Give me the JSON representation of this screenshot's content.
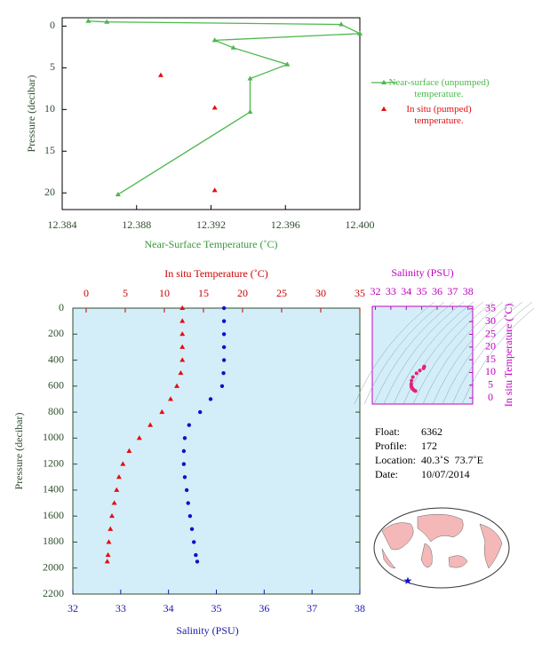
{
  "chart_data": [
    {
      "type": "line",
      "xlabel": "Near-Surface Temperature (˚C)",
      "ylabel": "Pressure (decibar)",
      "xlim": [
        12.384,
        12.4
      ],
      "xticks": [
        12.384,
        12.388,
        12.392,
        12.396,
        {
          "value": 12.4,
          "label": "12.400"
        }
      ],
      "ylim": [
        -1,
        22
      ],
      "yticks": [
        0,
        5,
        10,
        15,
        20
      ],
      "y_inverted": true,
      "legend": "right",
      "series": [
        {
          "name": "Near-surface (unpumped) temperature.",
          "color": "#4cb84c",
          "marker": "triangle",
          "line": true,
          "x": [
            12.3854,
            12.3864,
            12.399,
            12.4,
            12.3922,
            12.3932,
            12.3961,
            12.3941,
            12.3941,
            12.387
          ],
          "values": [
            -0.6,
            -0.5,
            -0.2,
            0.9,
            1.7,
            2.6,
            4.6,
            6.3,
            10.3,
            20.2
          ]
        },
        {
          "name": "In situ (pumped) temperature.",
          "color": "#e01010",
          "marker": "triangle",
          "line": false,
          "x": [
            12.3893,
            12.3922,
            12.3922
          ],
          "values": [
            5.9,
            9.8,
            19.7
          ]
        }
      ]
    },
    {
      "type": "profile",
      "ylabel": "Pressure (decibar)",
      "ylim": [
        0,
        2200
      ],
      "yticks": [
        0,
        200,
        400,
        600,
        800,
        1000,
        1200,
        1400,
        1600,
        1800,
        2000,
        2200
      ],
      "y_inverted": true,
      "xlabel": "Salinity (PSU)",
      "xlim": [
        32,
        38
      ],
      "xticks": [
        32,
        33,
        34,
        35,
        36,
        37,
        38
      ],
      "xcolor": "#1818a8",
      "x2label": "In situ Temperature (˚C)",
      "x2lim": [
        -1.7,
        35
      ],
      "x2ticks": [
        0,
        5,
        10,
        15,
        20,
        25,
        30,
        35
      ],
      "x2color": "#cc0000",
      "background": "#d4eef9",
      "y": [
        0,
        100,
        200,
        300,
        400,
        500,
        600,
        700,
        800,
        900,
        1000,
        1100,
        1200,
        1300,
        1400,
        1500,
        1600,
        1700,
        1800,
        1900,
        1950
      ],
      "series": [
        {
          "axis": "x2",
          "color": "#e01010",
          "marker": "triangle",
          "values": [
            12.3,
            12.3,
            12.3,
            12.3,
            12.3,
            12.1,
            11.6,
            10.8,
            9.7,
            8.2,
            6.8,
            5.5,
            4.7,
            4.2,
            3.9,
            3.6,
            3.3,
            3.1,
            2.9,
            2.8,
            2.7
          ]
        },
        {
          "axis": "x",
          "color": "#1010c8",
          "marker": "circle",
          "values": [
            35.16,
            35.16,
            35.16,
            35.16,
            35.16,
            35.15,
            35.12,
            34.88,
            34.66,
            34.43,
            34.34,
            34.32,
            34.32,
            34.34,
            34.38,
            34.41,
            34.45,
            34.49,
            34.53,
            34.57,
            34.6
          ]
        }
      ]
    },
    {
      "type": "scatter",
      "xlabel": "Salinity (PSU)",
      "ylabel": "In situ Temperature (˚C)",
      "xlim": [
        31.8,
        38.3
      ],
      "xticks": [
        32,
        33,
        34,
        35,
        36,
        37,
        38
      ],
      "ylim": [
        -2.4,
        36
      ],
      "yticks": [
        0,
        5,
        10,
        15,
        20,
        25,
        30,
        35
      ],
      "color": "#e8207a",
      "label_color": "#c000c0",
      "background": "#d4eef9"
    }
  ],
  "info": [
    [
      "Float:",
      "6362"
    ],
    [
      "Profile:",
      "172"
    ],
    [
      "Location:",
      "40.3˚S  73.7˚E"
    ],
    [
      "Date:",
      "10/07/2014"
    ]
  ]
}
